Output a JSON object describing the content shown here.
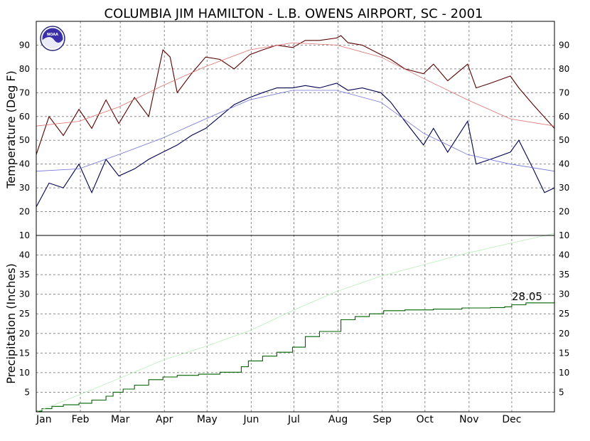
{
  "title": "COLUMBIA JIM HAMILTON - L.B. OWENS AIRPORT, SC - 2001",
  "logo": {
    "text": "NOAA",
    "icon": "noaa-logo"
  },
  "colors": {
    "max": "#5a0000",
    "min": "#00004f",
    "normal_max": "#e07070",
    "normal_min": "#7070d8",
    "precip": "#006400",
    "normal_precip": "#b8f0b8",
    "grid": "#8c8c8c"
  },
  "months": [
    "Jan",
    "Feb",
    "Mar",
    "Apr",
    "May",
    "Jun",
    "Jul",
    "Aug",
    "Sep",
    "Oct",
    "Nov",
    "Dec"
  ],
  "chart_data": [
    {
      "type": "line",
      "title": "",
      "ylabel": "Temperature (Deg F)",
      "ylim": [
        10,
        100
      ],
      "yticks": [
        20,
        30,
        40,
        50,
        60,
        70,
        80,
        90
      ],
      "grid": true,
      "series": [
        {
          "key": "max",
          "x": [
            1,
            10,
            20,
            31,
            40,
            50,
            59,
            70,
            80,
            90,
            95,
            100,
            110,
            120,
            130,
            140,
            151,
            160,
            170,
            181,
            190,
            200,
            212,
            215,
            220,
            230,
            243,
            250,
            260,
            273,
            280,
            290,
            304,
            310,
            320,
            334,
            340,
            350,
            365
          ],
          "y": [
            44,
            60,
            52,
            63,
            55,
            67,
            57,
            68,
            60,
            88,
            85,
            70,
            78,
            85,
            84,
            80,
            86,
            88,
            90,
            89,
            92,
            92,
            93,
            94,
            91,
            90,
            86,
            84,
            80,
            78,
            82,
            75,
            82,
            72,
            74,
            77,
            72,
            65,
            55
          ]
        },
        {
          "key": "min",
          "x": [
            1,
            10,
            20,
            31,
            40,
            50,
            59,
            70,
            80,
            90,
            100,
            110,
            120,
            130,
            140,
            151,
            160,
            170,
            181,
            190,
            200,
            212,
            220,
            230,
            243,
            250,
            260,
            273,
            280,
            290,
            304,
            310,
            320,
            334,
            340,
            350,
            358,
            365
          ],
          "y": [
            22,
            32,
            30,
            40,
            28,
            42,
            35,
            38,
            42,
            45,
            48,
            52,
            55,
            60,
            65,
            68,
            70,
            72,
            72,
            73,
            72,
            74,
            71,
            72,
            70,
            66,
            58,
            48,
            55,
            45,
            58,
            40,
            42,
            45,
            50,
            38,
            28,
            30
          ]
        },
        {
          "key": "normal_max",
          "x": [
            1,
            31,
            59,
            90,
            120,
            151,
            181,
            212,
            243,
            273,
            304,
            334,
            365
          ],
          "y": [
            56,
            58,
            64,
            73,
            81,
            88,
            91,
            90,
            85,
            76,
            67,
            59,
            56
          ]
        },
        {
          "key": "normal_min",
          "x": [
            1,
            31,
            59,
            90,
            120,
            151,
            181,
            212,
            243,
            273,
            304,
            334,
            365
          ],
          "y": [
            37,
            38,
            44,
            51,
            59,
            67,
            71,
            71,
            66,
            53,
            44,
            40,
            37
          ]
        }
      ]
    },
    {
      "type": "line",
      "title": "",
      "ylabel": "Precipitation (Inches)",
      "ylim": [
        0,
        45
      ],
      "yticks": [
        5,
        10,
        15,
        20,
        25,
        30,
        35,
        40
      ],
      "grid": true,
      "total_label": "28.05",
      "series": [
        {
          "key": "precip",
          "step": true,
          "x": [
            1,
            5,
            12,
            20,
            31,
            40,
            50,
            55,
            62,
            70,
            80,
            90,
            100,
            115,
            130,
            145,
            150,
            160,
            170,
            181,
            190,
            200,
            215,
            225,
            235,
            245,
            260,
            280,
            300,
            320,
            330,
            335,
            345,
            365
          ],
          "y": [
            0.2,
            0.8,
            1.4,
            1.8,
            2.2,
            3.0,
            4.0,
            5.0,
            5.8,
            6.8,
            8.2,
            8.9,
            9.3,
            9.6,
            10.1,
            11.5,
            13.0,
            14.2,
            15.2,
            16.5,
            19.2,
            20.5,
            23.5,
            24.3,
            25.0,
            25.8,
            26.0,
            26.2,
            26.5,
            26.6,
            26.8,
            27.3,
            27.8,
            28.05
          ]
        },
        {
          "key": "normal_precip",
          "x": [
            1,
            31,
            59,
            90,
            120,
            151,
            181,
            212,
            243,
            273,
            304,
            334,
            365
          ],
          "y": [
            0,
            4.3,
            8.5,
            13.2,
            16.7,
            20.7,
            25.8,
            30.7,
            34.6,
            37.5,
            40.5,
            43.0,
            45.5
          ]
        }
      ]
    }
  ]
}
